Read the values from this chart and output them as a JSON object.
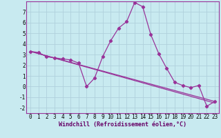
{
  "xlabel": "Windchill (Refroidissement éolien,°C)",
  "background_color": "#c8eaf0",
  "grid_color": "#b0d0dc",
  "line_color": "#993399",
  "spine_color": "#993399",
  "xlim": [
    -0.5,
    23.5
  ],
  "ylim": [
    -2.5,
    8.0
  ],
  "yticks": [
    -2,
    -1,
    0,
    1,
    2,
    3,
    4,
    5,
    6,
    7
  ],
  "xticks": [
    0,
    1,
    2,
    3,
    4,
    5,
    6,
    7,
    8,
    9,
    10,
    11,
    12,
    13,
    14,
    15,
    16,
    17,
    18,
    19,
    20,
    21,
    22,
    23
  ],
  "series1_x": [
    0,
    1,
    2,
    3,
    4,
    5,
    6,
    7,
    8,
    9,
    10,
    11,
    12,
    13,
    14,
    15,
    16,
    17,
    18,
    19,
    20,
    21,
    22,
    23
  ],
  "series1_y": [
    3.3,
    3.2,
    2.8,
    2.7,
    2.6,
    2.5,
    2.2,
    0.0,
    0.8,
    2.8,
    4.3,
    5.5,
    6.1,
    7.9,
    7.5,
    4.9,
    3.1,
    1.7,
    0.4,
    0.1,
    -0.1,
    0.1,
    -1.85,
    -1.4
  ],
  "series2_x": [
    0,
    23
  ],
  "series2_y": [
    3.3,
    -1.4
  ],
  "series3_x": [
    0,
    23
  ],
  "series3_y": [
    3.3,
    -1.55
  ],
  "tick_fontsize": 5.5,
  "xlabel_fontsize": 6.0
}
